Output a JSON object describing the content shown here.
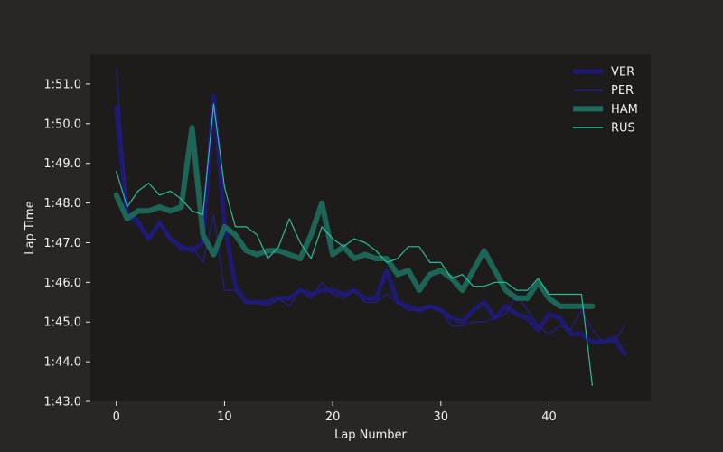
{
  "chart_data": {
    "type": "line",
    "xlabel": "Lap Number",
    "ylabel": "Lap Time",
    "xlim": [
      -2.4,
      49.4
    ],
    "ylim": [
      103.0,
      111.75
    ],
    "xticks": [
      0,
      10,
      20,
      30,
      40
    ],
    "yticks": [
      {
        "value": 103.0,
        "label": "1:43.0"
      },
      {
        "value": 104.0,
        "label": "1:44.0"
      },
      {
        "value": 105.0,
        "label": "1:45.0"
      },
      {
        "value": 106.0,
        "label": "1:46.0"
      },
      {
        "value": 107.0,
        "label": "1:47.0"
      },
      {
        "value": 108.0,
        "label": "1:48.0"
      },
      {
        "value": 109.0,
        "label": "1:49.0"
      },
      {
        "value": 110.0,
        "label": "1:50.0"
      },
      {
        "value": 111.0,
        "label": "1:51.0"
      }
    ],
    "grid": false,
    "legend_position": "top-right",
    "colors": {
      "figure_bg": "#292625",
      "plot_bg": "#1e1c1b",
      "text": "#f0f0f0"
    },
    "series": [
      {
        "name": "VER",
        "color": "#1e1a78",
        "width": 5,
        "x": [
          0,
          1,
          2,
          3,
          4,
          5,
          6,
          7,
          8,
          9,
          10,
          11,
          12,
          13,
          14,
          15,
          16,
          17,
          18,
          19,
          20,
          21,
          22,
          23,
          24,
          25,
          26,
          27,
          28,
          29,
          30,
          31,
          32,
          33,
          34,
          35,
          36,
          37,
          38,
          39,
          40,
          41,
          42,
          43,
          44,
          45,
          46,
          47
        ],
        "values": [
          110.4,
          107.7,
          107.5,
          107.1,
          107.5,
          107.1,
          106.9,
          106.8,
          107.0,
          110.7,
          107.5,
          105.9,
          105.5,
          105.5,
          105.5,
          105.6,
          105.6,
          105.8,
          105.7,
          105.8,
          105.8,
          105.7,
          105.8,
          105.6,
          105.6,
          106.3,
          105.5,
          105.4,
          105.3,
          105.4,
          105.3,
          105.1,
          105.0,
          105.3,
          105.5,
          105.1,
          105.4,
          105.2,
          105.1,
          104.8,
          105.2,
          105.1,
          104.7,
          104.7,
          104.5,
          104.5,
          104.6,
          104.2
        ]
      },
      {
        "name": "PER",
        "color": "#211d85",
        "width": 1.5,
        "x": [
          0,
          1,
          2,
          3,
          4,
          5,
          6,
          7,
          8,
          9,
          10,
          11,
          12,
          13,
          14,
          15,
          16,
          17,
          18,
          19,
          20,
          21,
          22,
          23,
          24,
          25,
          26,
          27,
          28,
          29,
          30,
          31,
          32,
          33,
          34,
          35,
          36,
          37,
          38,
          39,
          40,
          41,
          42,
          43,
          44,
          45,
          46,
          47
        ],
        "values": [
          111.4,
          107.7,
          107.6,
          107.1,
          107.5,
          107.1,
          106.8,
          106.9,
          106.5,
          107.7,
          105.8,
          105.8,
          105.5,
          105.5,
          105.4,
          105.6,
          105.4,
          105.8,
          105.6,
          106.0,
          105.7,
          105.6,
          105.8,
          105.5,
          105.5,
          105.7,
          105.5,
          105.3,
          105.3,
          105.4,
          105.3,
          104.9,
          104.9,
          105.0,
          105.0,
          105.1,
          105.2,
          105.7,
          105.3,
          104.9,
          104.7,
          104.9,
          104.8,
          105.3,
          104.8,
          104.5,
          104.5,
          104.9
        ]
      },
      {
        "name": "HAM",
        "color": "#1c6b5c",
        "width": 6,
        "x": [
          0,
          1,
          2,
          3,
          4,
          5,
          6,
          7,
          8,
          9,
          10,
          11,
          12,
          13,
          14,
          15,
          16,
          17,
          18,
          19,
          20,
          21,
          22,
          23,
          24,
          25,
          26,
          27,
          28,
          29,
          30,
          31,
          32,
          33,
          34,
          35,
          36,
          37,
          38,
          39,
          40,
          41,
          42,
          43,
          44
        ],
        "values": [
          108.2,
          107.6,
          107.8,
          107.8,
          107.9,
          107.8,
          107.9,
          109.9,
          107.2,
          106.7,
          107.4,
          107.2,
          106.8,
          106.7,
          106.8,
          106.8,
          106.7,
          106.6,
          107.2,
          108.0,
          106.7,
          106.9,
          106.6,
          106.7,
          106.6,
          106.6,
          106.2,
          106.3,
          105.8,
          106.2,
          106.3,
          106.1,
          105.8,
          106.3,
          106.8,
          106.3,
          105.8,
          105.6,
          105.6,
          106.0,
          105.6,
          105.4,
          105.4,
          105.4,
          105.4
        ]
      },
      {
        "name": "RUS",
        "color": "#2ac9a4",
        "width": 1.2,
        "x": [
          0,
          1,
          2,
          3,
          4,
          5,
          6,
          7,
          8,
          9,
          10,
          11,
          12,
          13,
          14,
          15,
          16,
          17,
          18,
          19,
          20,
          21,
          22,
          23,
          24,
          25,
          26,
          27,
          28,
          29,
          30,
          31,
          32,
          33,
          34,
          35,
          36,
          37,
          38,
          39,
          40,
          41,
          42,
          43,
          44
        ],
        "values": [
          108.8,
          107.9,
          108.3,
          108.5,
          108.2,
          108.3,
          108.1,
          107.8,
          107.7,
          110.5,
          108.4,
          107.4,
          107.4,
          107.2,
          106.6,
          106.9,
          107.6,
          107.0,
          106.6,
          107.4,
          107.1,
          106.9,
          107.1,
          107.0,
          106.8,
          106.5,
          106.6,
          106.9,
          106.9,
          106.5,
          106.5,
          106.1,
          106.2,
          105.9,
          105.9,
          106.0,
          106.0,
          105.8,
          105.8,
          106.1,
          105.7,
          105.7,
          105.7,
          105.7,
          103.4
        ]
      }
    ]
  }
}
